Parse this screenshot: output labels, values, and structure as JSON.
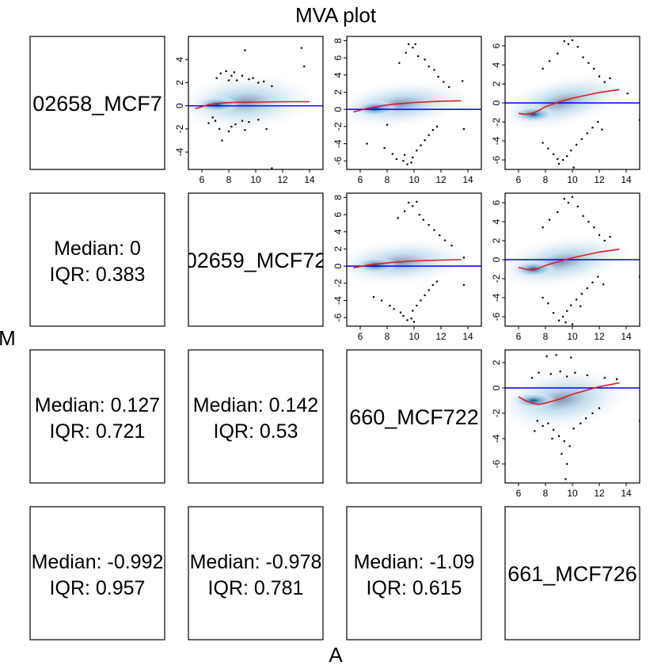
{
  "figure": {
    "title": "MVA plot",
    "xlabel": "A",
    "ylabel": "M"
  },
  "colors": {
    "point": "#000000",
    "zero_line": "#0000ff",
    "loess_line": "#e31a1c",
    "density_light": "#deebf7",
    "density_mid": "#6baed6",
    "density_dark": "#08306b"
  },
  "chart_data": {
    "type": "scatter",
    "layout": "pairs-matrix",
    "samples": [
      "02658_MCF7",
      "02659_MCF72",
      "660_MCF722",
      "661_MCF726"
    ],
    "stats": [
      {
        "row": 2,
        "col": 1,
        "median": "Median: 0",
        "iqr": "IQR: 0.383"
      },
      {
        "row": 3,
        "col": 1,
        "median": "Median: 0.127",
        "iqr": "IQR: 0.721"
      },
      {
        "row": 3,
        "col": 2,
        "median": "Median: 0.142",
        "iqr": "IQR: 0.53"
      },
      {
        "row": 4,
        "col": 1,
        "median": "Median: -0.992",
        "iqr": "IQR: 0.957"
      },
      {
        "row": 4,
        "col": 2,
        "median": "Median: -0.978",
        "iqr": "IQR: 0.781"
      },
      {
        "row": 4,
        "col": 3,
        "median": "Median: -1.09",
        "iqr": "IQR: 0.615"
      }
    ],
    "panels": [
      {
        "row": 1,
        "col": 2,
        "xlim": [
          5,
          15
        ],
        "ylim": [
          -5.5,
          6
        ],
        "xticks": [
          "6",
          "8",
          "10",
          "12",
          "14"
        ],
        "xtick_values": [
          6,
          8,
          10,
          12,
          14
        ],
        "yticks": [
          "-4",
          "-2",
          "0",
          "2",
          "4"
        ],
        "ytick_values": [
          -4,
          -2,
          0,
          2,
          4
        ],
        "loess": {
          "x": [
            5.5,
            6.5,
            7.5,
            8.5,
            10,
            12,
            14
          ],
          "y": [
            -0.25,
            0.1,
            0.25,
            0.3,
            0.32,
            0.35,
            0.35
          ]
        },
        "points": [
          [
            9.2,
            4.8
          ],
          [
            13.4,
            5.0
          ],
          [
            13.6,
            3.4
          ],
          [
            7.4,
            2.8
          ],
          [
            7.8,
            3.0
          ],
          [
            8.2,
            2.6
          ],
          [
            8.6,
            2.2
          ],
          [
            9.0,
            2.6
          ],
          [
            9.5,
            2.3
          ],
          [
            10.2,
            2.0
          ],
          [
            11.2,
            1.7
          ],
          [
            7.1,
            2.4
          ],
          [
            8.0,
            2.2
          ],
          [
            9.8,
            2.4
          ],
          [
            10.6,
            2.1
          ],
          [
            8.4,
            2.9
          ],
          [
            6.5,
            -1.5
          ],
          [
            7.0,
            -1.3
          ],
          [
            7.3,
            -2.0
          ],
          [
            7.5,
            -3.0
          ],
          [
            8.0,
            -2.2
          ],
          [
            8.5,
            -1.6
          ],
          [
            9.0,
            -1.3
          ],
          [
            9.5,
            -1.4
          ],
          [
            10.2,
            -1.2
          ],
          [
            10.8,
            -2.0
          ],
          [
            11.2,
            -5.4
          ],
          [
            8.2,
            -1.8
          ],
          [
            9.2,
            -2.1
          ],
          [
            6.8,
            -1.0
          ]
        ]
      },
      {
        "row": 1,
        "col": 3,
        "xlim": [
          5,
          15
        ],
        "ylim": [
          -7,
          8.5
        ],
        "xticks": [
          "6",
          "8",
          "10",
          "12",
          "14"
        ],
        "xtick_values": [
          6,
          8,
          10,
          12,
          14
        ],
        "yticks": [
          "-6",
          "-4",
          "-2",
          "0",
          "2",
          "4",
          "6",
          "8"
        ],
        "ytick_values": [
          -6,
          -4,
          -2,
          0,
          2,
          4,
          6,
          8
        ],
        "loess": {
          "x": [
            5.5,
            6.5,
            7.5,
            8.5,
            10,
            12,
            13.5
          ],
          "y": [
            -0.3,
            0.1,
            0.4,
            0.6,
            0.8,
            0.95,
            1.0
          ]
        },
        "points": [
          [
            9.6,
            7.6
          ],
          [
            9.9,
            7.2
          ],
          [
            10.1,
            7.6
          ],
          [
            9.4,
            6.6
          ],
          [
            10.3,
            6.2
          ],
          [
            10.8,
            5.8
          ],
          [
            11.1,
            5.0
          ],
          [
            11.5,
            4.6
          ],
          [
            11.8,
            3.8
          ],
          [
            12.2,
            3.2
          ],
          [
            12.6,
            2.6
          ],
          [
            8.9,
            5.4
          ],
          [
            13.6,
            3.3
          ],
          [
            9.2,
            -6.0
          ],
          [
            9.5,
            -6.4
          ],
          [
            9.8,
            -6.2
          ],
          [
            9.3,
            -5.3
          ],
          [
            9.9,
            -5.6
          ],
          [
            10.2,
            -4.8
          ],
          [
            10.5,
            -4.2
          ],
          [
            10.8,
            -3.6
          ],
          [
            11.1,
            -3.0
          ],
          [
            11.4,
            -2.4
          ],
          [
            11.7,
            -2.0
          ],
          [
            8.7,
            -5.8
          ],
          [
            8.4,
            -5.2
          ],
          [
            6.5,
            -4.0
          ],
          [
            7.8,
            -4.5
          ],
          [
            13.7,
            -2.3
          ],
          [
            8.0,
            -1.8
          ]
        ]
      },
      {
        "row": 1,
        "col": 4,
        "xlim": [
          5,
          15
        ],
        "ylim": [
          -7,
          7
        ],
        "xticks": [
          "6",
          "8",
          "10",
          "12",
          "14"
        ],
        "xtick_values": [
          6,
          8,
          10,
          12,
          14
        ],
        "yticks": [
          "-6",
          "-4",
          "-2",
          "0",
          "2",
          "4",
          "6"
        ],
        "ytick_values": [
          -6,
          -4,
          -2,
          0,
          2,
          4,
          6
        ],
        "loess": {
          "x": [
            6,
            6.5,
            7,
            7.5,
            8,
            9,
            10,
            11,
            12,
            13.5
          ],
          "y": [
            -1.1,
            -1.2,
            -1.1,
            -0.8,
            -0.4,
            0.1,
            0.5,
            0.8,
            1.1,
            1.4
          ]
        },
        "points": [
          [
            9.4,
            6.5
          ],
          [
            9.7,
            6.2
          ],
          [
            10.0,
            6.6
          ],
          [
            8.9,
            5.2
          ],
          [
            10.4,
            5.9
          ],
          [
            10.8,
            4.8
          ],
          [
            11.2,
            4.2
          ],
          [
            11.6,
            3.6
          ],
          [
            12.0,
            2.8
          ],
          [
            12.4,
            2.2
          ],
          [
            8.3,
            4.4
          ],
          [
            7.8,
            3.6
          ],
          [
            12.8,
            2.6
          ],
          [
            14.1,
            1.0
          ],
          [
            15.0,
            -1.8
          ],
          [
            9.0,
            -6.4
          ],
          [
            9.3,
            -6.0
          ],
          [
            9.6,
            -5.6
          ],
          [
            8.6,
            -5.4
          ],
          [
            9.9,
            -5.0
          ],
          [
            10.3,
            -4.4
          ],
          [
            10.7,
            -3.8
          ],
          [
            11.1,
            -3.2
          ],
          [
            11.5,
            -2.6
          ],
          [
            11.9,
            -2.0
          ],
          [
            8.2,
            -4.8
          ],
          [
            7.8,
            -4.2
          ],
          [
            10.1,
            -6.8
          ],
          [
            8.9,
            -5.9
          ],
          [
            12.2,
            -2.8
          ]
        ]
      },
      {
        "row": 2,
        "col": 3,
        "xlim": [
          5,
          15
        ],
        "ylim": [
          -7,
          8.5
        ],
        "xticks": [
          "6",
          "8",
          "10",
          "12",
          "14"
        ],
        "xtick_values": [
          6,
          8,
          10,
          12,
          14
        ],
        "yticks": [
          "-6",
          "-4",
          "-2",
          "0",
          "2",
          "4",
          "6",
          "8"
        ],
        "ytick_values": [
          -6,
          -4,
          -2,
          0,
          2,
          4,
          6,
          8
        ],
        "loess": {
          "x": [
            5.5,
            6.5,
            7.5,
            8.5,
            10,
            12,
            13.5
          ],
          "y": [
            -0.2,
            0.1,
            0.3,
            0.45,
            0.6,
            0.7,
            0.75
          ]
        },
        "points": [
          [
            9.6,
            7.4
          ],
          [
            9.9,
            7.0
          ],
          [
            10.2,
            7.5
          ],
          [
            9.3,
            6.4
          ],
          [
            10.4,
            6.0
          ],
          [
            10.7,
            5.4
          ],
          [
            11.1,
            4.8
          ],
          [
            11.5,
            4.2
          ],
          [
            11.9,
            3.6
          ],
          [
            12.3,
            3.0
          ],
          [
            12.8,
            2.4
          ],
          [
            8.8,
            5.6
          ],
          [
            13.7,
            1.0
          ],
          [
            9.2,
            -5.8
          ],
          [
            9.5,
            -6.3
          ],
          [
            9.8,
            -6.1
          ],
          [
            9.0,
            -5.4
          ],
          [
            9.9,
            -5.2
          ],
          [
            10.2,
            -4.6
          ],
          [
            10.5,
            -4.0
          ],
          [
            10.8,
            -3.4
          ],
          [
            11.1,
            -2.8
          ],
          [
            11.4,
            -2.2
          ],
          [
            8.5,
            -5.0
          ],
          [
            8.2,
            -4.6
          ],
          [
            7.0,
            -3.6
          ],
          [
            7.6,
            -4.0
          ],
          [
            13.7,
            -2.2
          ],
          [
            10.0,
            -6.5
          ],
          [
            11.7,
            -1.8
          ]
        ]
      },
      {
        "row": 2,
        "col": 4,
        "xlim": [
          5,
          15
        ],
        "ylim": [
          -7,
          7
        ],
        "xticks": [
          "6",
          "8",
          "10",
          "12",
          "14"
        ],
        "xtick_values": [
          6,
          8,
          10,
          12,
          14
        ],
        "yticks": [
          "-6",
          "-4",
          "-2",
          "0",
          "2",
          "4",
          "6"
        ],
        "ytick_values": [
          -6,
          -4,
          -2,
          0,
          2,
          4,
          6
        ],
        "loess": {
          "x": [
            6,
            6.5,
            7,
            7.5,
            8,
            9,
            10,
            11,
            12,
            13.5
          ],
          "y": [
            -0.8,
            -1.0,
            -1.1,
            -0.9,
            -0.6,
            -0.2,
            0.2,
            0.5,
            0.8,
            1.1
          ]
        },
        "points": [
          [
            9.4,
            6.4
          ],
          [
            9.7,
            6.0
          ],
          [
            10.0,
            6.6
          ],
          [
            8.9,
            5.0
          ],
          [
            10.4,
            5.6
          ],
          [
            10.8,
            4.6
          ],
          [
            11.2,
            4.0
          ],
          [
            11.6,
            3.4
          ],
          [
            12.0,
            2.6
          ],
          [
            12.4,
            2.0
          ],
          [
            8.3,
            4.2
          ],
          [
            7.8,
            3.4
          ],
          [
            12.8,
            2.4
          ],
          [
            15.0,
            -1.8
          ],
          [
            9.0,
            -6.4
          ],
          [
            9.3,
            -6.0
          ],
          [
            9.6,
            -5.4
          ],
          [
            8.6,
            -5.6
          ],
          [
            9.9,
            -4.8
          ],
          [
            10.3,
            -4.2
          ],
          [
            10.7,
            -3.6
          ],
          [
            11.1,
            -3.0
          ],
          [
            11.5,
            -2.4
          ],
          [
            11.9,
            -1.8
          ],
          [
            8.2,
            -4.6
          ],
          [
            7.8,
            -4.0
          ],
          [
            10.0,
            -6.8
          ],
          [
            9.5,
            -6.6
          ],
          [
            12.3,
            -2.6
          ],
          [
            10.6,
            -4.9
          ]
        ]
      },
      {
        "row": 3,
        "col": 4,
        "xlim": [
          5,
          15
        ],
        "ylim": [
          -7.5,
          3
        ],
        "xticks": [
          "6",
          "8",
          "10",
          "12",
          "14"
        ],
        "xtick_values": [
          6,
          8,
          10,
          12,
          14
        ],
        "yticks": [
          "-6",
          "-4",
          "-2",
          "0",
          "2"
        ],
        "ytick_values": [
          -6,
          -4,
          -2,
          0,
          2
        ],
        "loess": {
          "x": [
            6,
            6.5,
            7,
            7.5,
            8,
            9,
            10,
            11,
            12,
            13.5
          ],
          "y": [
            -0.7,
            -1.0,
            -1.2,
            -1.3,
            -1.2,
            -0.9,
            -0.5,
            -0.2,
            0.1,
            0.4
          ]
        },
        "points": [
          [
            8.1,
            2.5
          ],
          [
            8.8,
            2.6
          ],
          [
            9.9,
            2.4
          ],
          [
            7.5,
            1.2
          ],
          [
            8.4,
            1.1
          ],
          [
            9.1,
            1.3
          ],
          [
            10.2,
            1.2
          ],
          [
            11.1,
            1.0
          ],
          [
            12.4,
            0.8
          ],
          [
            13.3,
            0.7
          ],
          [
            7.0,
            0.8
          ],
          [
            9.6,
            0.9
          ],
          [
            7.4,
            -2.6
          ],
          [
            7.8,
            -3.0
          ],
          [
            8.2,
            -2.8
          ],
          [
            8.6,
            -3.3
          ],
          [
            9.0,
            -3.8
          ],
          [
            9.4,
            -4.2
          ],
          [
            9.2,
            -5.2
          ],
          [
            9.6,
            -6.0
          ],
          [
            9.5,
            -7.2
          ],
          [
            10.1,
            -3.2
          ],
          [
            10.6,
            -2.8
          ],
          [
            11.0,
            -2.4
          ],
          [
            11.5,
            -2.0
          ],
          [
            12.0,
            -1.6
          ],
          [
            15.0,
            -2.6
          ],
          [
            8.5,
            -4.0
          ],
          [
            9.8,
            -4.6
          ],
          [
            7.2,
            -3.4
          ]
        ]
      }
    ]
  }
}
